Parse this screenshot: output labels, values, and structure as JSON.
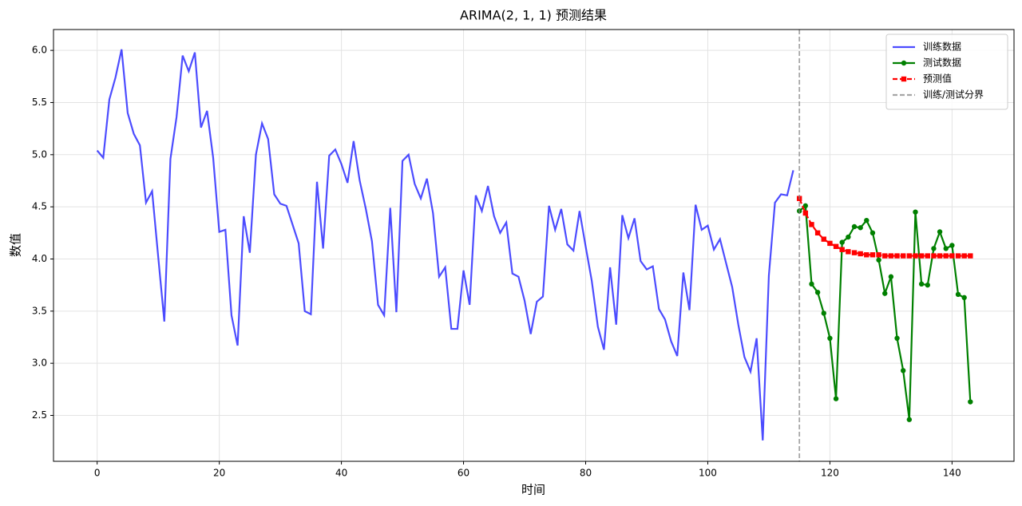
{
  "chart_data": {
    "type": "line",
    "title": "ARIMA(2, 1, 1) 预测结果",
    "x_label": "时间",
    "y_label": "数值",
    "xlim": [
      -7.15,
      150.15
    ],
    "ylim": [
      2.06,
      6.2
    ],
    "xticks": [
      0,
      20,
      40,
      60,
      80,
      100,
      120,
      140
    ],
    "yticks": [
      2.5,
      {
        "value": 3,
        "label": "3.0"
      },
      3.5,
      {
        "value": 4,
        "label": "4.0"
      },
      4.5,
      {
        "value": 5,
        "label": "5.0"
      },
      5.5,
      {
        "value": 6,
        "label": "6.0"
      }
    ],
    "grid": true,
    "legend": "upper right",
    "series": [
      {
        "name": "训练数据",
        "color": "blue",
        "marker": "none",
        "x": [
          0,
          1,
          2,
          3,
          4,
          5,
          6,
          7,
          8,
          9,
          10,
          11,
          12,
          13,
          14,
          15,
          16,
          17,
          18,
          19,
          20,
          21,
          22,
          23,
          24,
          25,
          26,
          27,
          28,
          29,
          30,
          31,
          32,
          33,
          34,
          35,
          36,
          37,
          38,
          39,
          40,
          41,
          42,
          43,
          44,
          45,
          46,
          47,
          48,
          49,
          50,
          51,
          52,
          53,
          54,
          55,
          56,
          57,
          58,
          59,
          60,
          61,
          62,
          63,
          64,
          65,
          66,
          67,
          68,
          69,
          70,
          71,
          72,
          73,
          74,
          75,
          76,
          77,
          78,
          79,
          80,
          81,
          82,
          83,
          84,
          85,
          86,
          87,
          88,
          89,
          90,
          91,
          92,
          93,
          94,
          95,
          96,
          97,
          98,
          99,
          100,
          101,
          102,
          103,
          104,
          105,
          106,
          107,
          108,
          109,
          110,
          111,
          112,
          113,
          114
        ],
        "values": [
          5.04,
          4.97,
          5.53,
          5.74,
          6.01,
          5.4,
          5.2,
          5.09,
          4.54,
          4.65,
          4.02,
          3.4,
          4.96,
          5.36,
          5.95,
          5.8,
          5.98,
          5.26,
          5.42,
          4.97,
          4.26,
          4.28,
          3.46,
          3.17,
          4.41,
          4.06,
          5.0,
          5.3,
          5.15,
          4.62,
          4.53,
          4.51,
          4.33,
          4.15,
          3.5,
          3.47,
          4.74,
          4.1,
          4.99,
          5.05,
          4.91,
          4.73,
          5.13,
          4.75,
          4.48,
          4.17,
          3.56,
          3.46,
          4.49,
          3.49,
          4.94,
          5.0,
          4.72,
          4.58,
          4.77,
          4.44,
          3.83,
          3.92,
          3.33,
          3.33,
          3.89,
          3.56,
          4.61,
          4.46,
          4.7,
          4.41,
          4.25,
          4.35,
          3.86,
          3.83,
          3.6,
          3.28,
          3.59,
          3.64,
          4.51,
          4.28,
          4.48,
          4.14,
          4.08,
          4.46,
          4.12,
          3.79,
          3.35,
          3.13,
          3.92,
          3.37,
          4.42,
          4.2,
          4.39,
          3.98,
          3.9,
          3.93,
          3.52,
          3.42,
          3.21,
          3.07,
          3.87,
          3.51,
          4.52,
          4.28,
          4.32,
          4.09,
          4.19,
          3.96,
          3.73,
          3.37,
          3.06,
          2.92,
          3.24,
          2.26,
          3.84,
          4.54,
          4.62,
          4.61,
          4.85
        ]
      },
      {
        "name": "测试数据",
        "color": "green",
        "marker": "circle",
        "x": [
          115,
          116,
          117,
          118,
          119,
          120,
          121,
          122,
          123,
          124,
          125,
          126,
          127,
          128,
          129,
          130,
          131,
          132,
          133,
          134,
          135,
          136,
          137,
          138,
          139,
          140,
          141,
          142,
          143
        ],
        "values": [
          4.46,
          4.51,
          3.76,
          3.68,
          3.48,
          3.24,
          2.66,
          4.16,
          4.21,
          4.31,
          4.3,
          4.37,
          4.25,
          3.99,
          3.67,
          3.83,
          3.24,
          2.93,
          2.46,
          4.45,
          3.76,
          3.75,
          4.1,
          4.26,
          4.1,
          4.13,
          3.66,
          3.63,
          2.63
        ]
      },
      {
        "name": "预测值",
        "color": "red",
        "marker": "square",
        "dashed": true,
        "x": [
          115,
          116,
          117,
          118,
          119,
          120,
          121,
          122,
          123,
          124,
          125,
          126,
          127,
          128,
          129,
          130,
          131,
          132,
          133,
          134,
          135,
          136,
          137,
          138,
          139,
          140,
          141,
          142,
          143
        ],
        "values": [
          4.58,
          4.44,
          4.33,
          4.25,
          4.19,
          4.15,
          4.12,
          4.09,
          4.07,
          4.06,
          4.05,
          4.04,
          4.04,
          4.04,
          4.03,
          4.03,
          4.03,
          4.03,
          4.03,
          4.03,
          4.03,
          4.03,
          4.03,
          4.03,
          4.03,
          4.03,
          4.03,
          4.03,
          4.03
        ]
      }
    ],
    "boundary": {
      "name": "训练/测试分界",
      "x": 115,
      "color": "gray"
    }
  }
}
